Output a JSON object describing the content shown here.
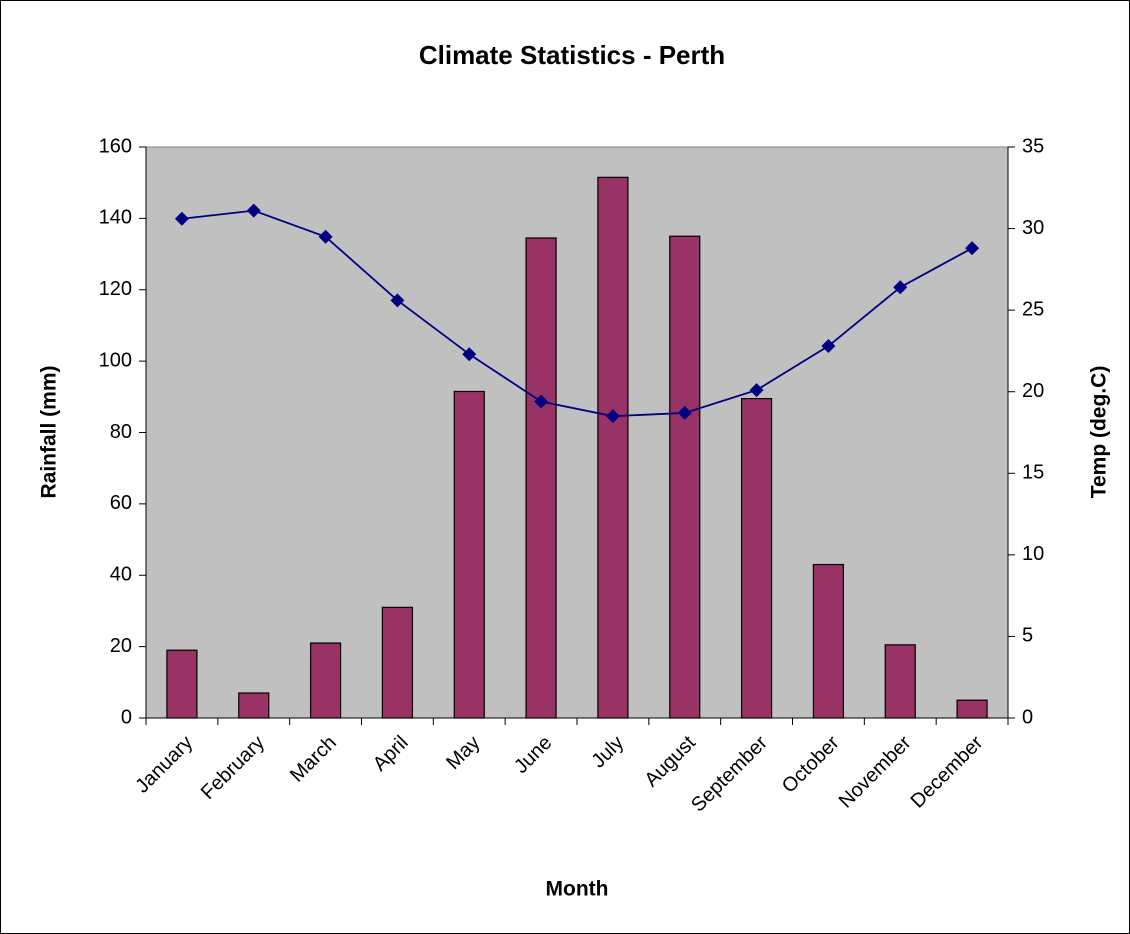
{
  "chart_data": {
    "type": "bar",
    "title": "Climate Statistics - Perth",
    "x_label": "Month",
    "y_label": "Rainfall (mm)",
    "y2_label": "Temp (deg.C)",
    "categories": [
      "January",
      "February",
      "March",
      "April",
      "May",
      "June",
      "July",
      "August",
      "September",
      "October",
      "November",
      "December"
    ],
    "series": [
      {
        "name": "Rainfall",
        "type": "bar",
        "color": "#993366",
        "values": [
          19,
          7,
          21,
          31,
          91.5,
          134.5,
          151.5,
          135,
          89.5,
          43,
          20.5,
          5
        ]
      },
      {
        "name": "Temperature",
        "type": "line",
        "axis": "y2",
        "color": "#000080",
        "values": [
          30.6,
          31.1,
          29.5,
          25.6,
          22.3,
          19.4,
          18.5,
          18.7,
          20.1,
          22.8,
          26.4,
          28.8
        ]
      }
    ],
    "ylim": [
      0,
      160
    ],
    "yticks": [
      0,
      20,
      40,
      60,
      80,
      100,
      120,
      140,
      160
    ],
    "y2lim": [
      0,
      35
    ],
    "y2ticks": [
      0,
      5,
      10,
      15,
      20,
      25,
      30,
      35
    ],
    "plot_background": "#c0c0c0"
  }
}
